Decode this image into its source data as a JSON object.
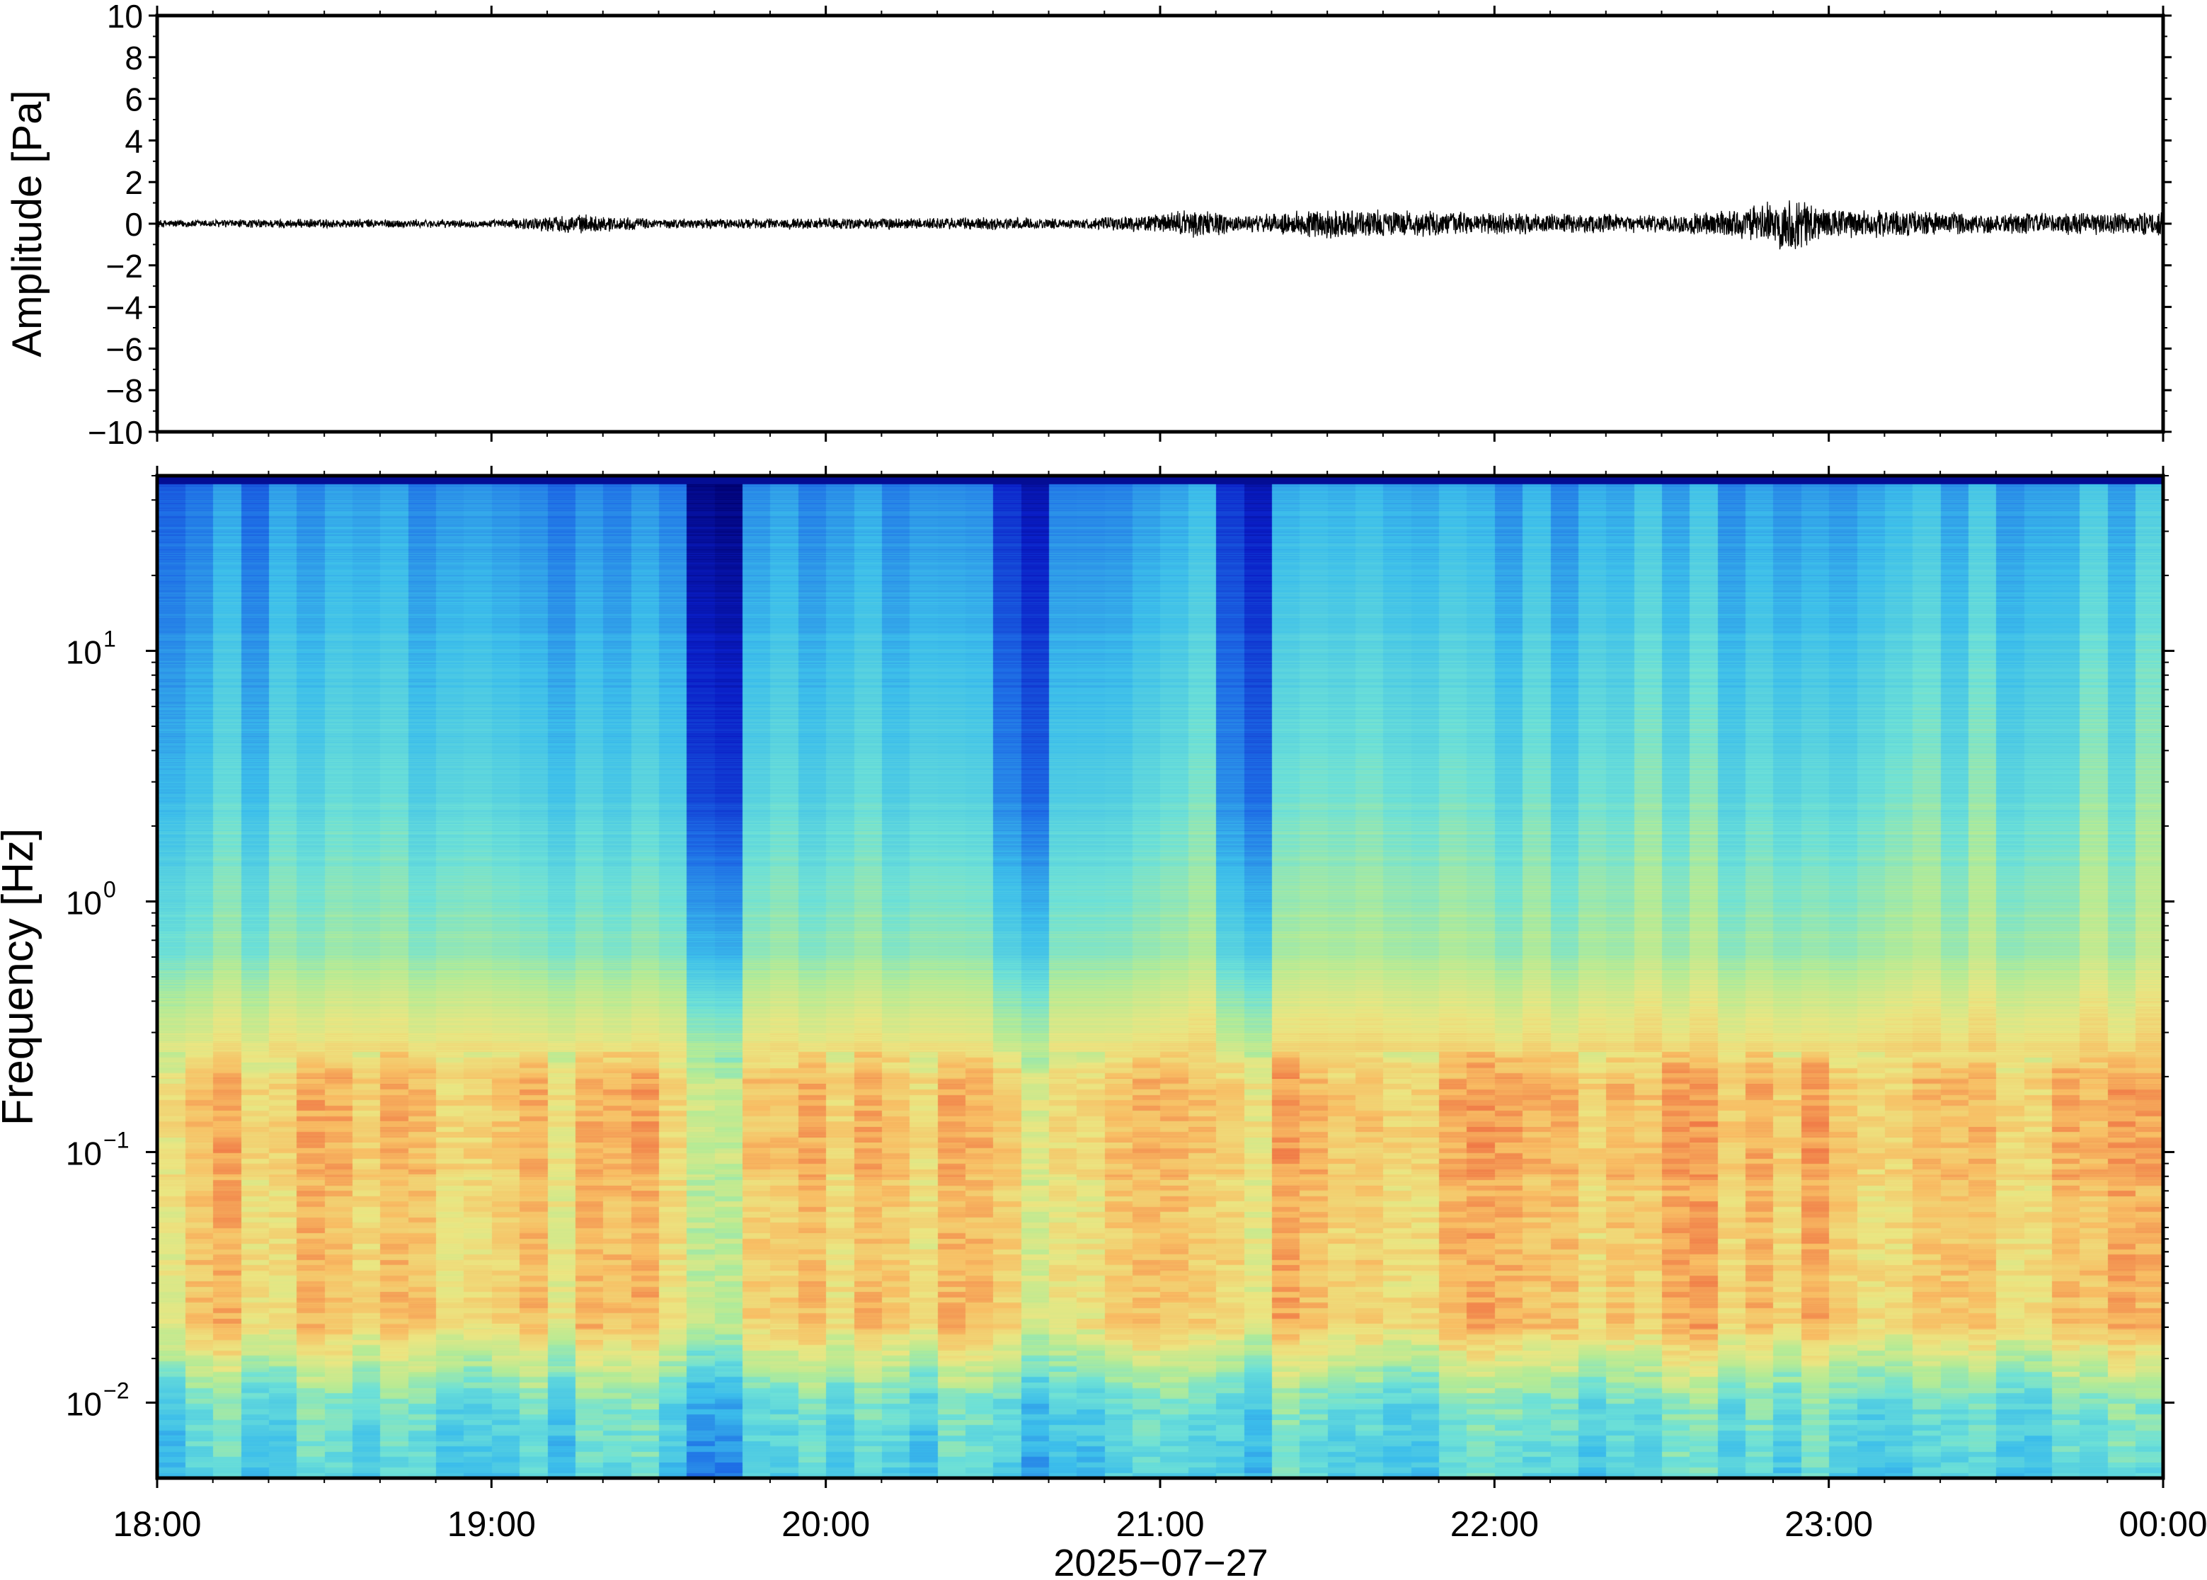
{
  "chart_data": [
    {
      "type": "line",
      "panel": "waveform",
      "ylabel": "Amplitude [Pa]",
      "ylim": [
        -10,
        10
      ],
      "yticks": [
        10,
        8,
        6,
        4,
        2,
        0,
        -2,
        -4,
        -6,
        -8,
        -10
      ],
      "ytick_labels": [
        "10",
        "8",
        "6",
        "4",
        "2",
        "0",
        "−2",
        "−4",
        "−6",
        "−8",
        "−10"
      ],
      "xlim_hours": [
        18,
        24
      ],
      "series": [
        {
          "color": "#000000",
          "envelope_time_hours": [
            18.0,
            18.5,
            19.0,
            19.25,
            19.5,
            20.0,
            20.25,
            20.5,
            20.75,
            21.0,
            21.1,
            21.25,
            21.5,
            22.0,
            22.5,
            22.75,
            22.9,
            23.0,
            23.5,
            24.0
          ],
          "envelope_amplitude": [
            0.2,
            0.25,
            0.2,
            0.5,
            0.25,
            0.3,
            0.3,
            0.35,
            0.25,
            0.5,
            0.8,
            0.4,
            0.8,
            0.55,
            0.45,
            0.8,
            1.5,
            0.8,
            0.55,
            0.6
          ]
        }
      ],
      "grid": false
    },
    {
      "type": "heatmap",
      "panel": "spectrogram",
      "ylabel": "Frequency [Hz]",
      "xlabel": "2025−07−27",
      "yscale": "log",
      "ylim": [
        0.005,
        50
      ],
      "yticks": [
        0.01,
        0.1,
        1,
        10
      ],
      "ytick_labels": [
        {
          "base": "10",
          "exp": "−2"
        },
        {
          "base": "10",
          "exp": "−1"
        },
        {
          "base": "10",
          "exp": "0"
        },
        {
          "base": "10",
          "exp": "1"
        }
      ],
      "x_tick_labels": [
        "18:00",
        "19:00",
        "20:00",
        "21:00",
        "22:00",
        "23:00",
        "00:00"
      ],
      "xlim_hours": [
        18,
        24
      ],
      "colormap": "jet-like (dark blue low, red high)",
      "dark_columns_time_hours": [
        19.67,
        20.58,
        21.25
      ],
      "colors": {
        "low": "#000080",
        "mid": "#4fd3e6",
        "high": "#e8483a"
      },
      "grid": false
    }
  ]
}
